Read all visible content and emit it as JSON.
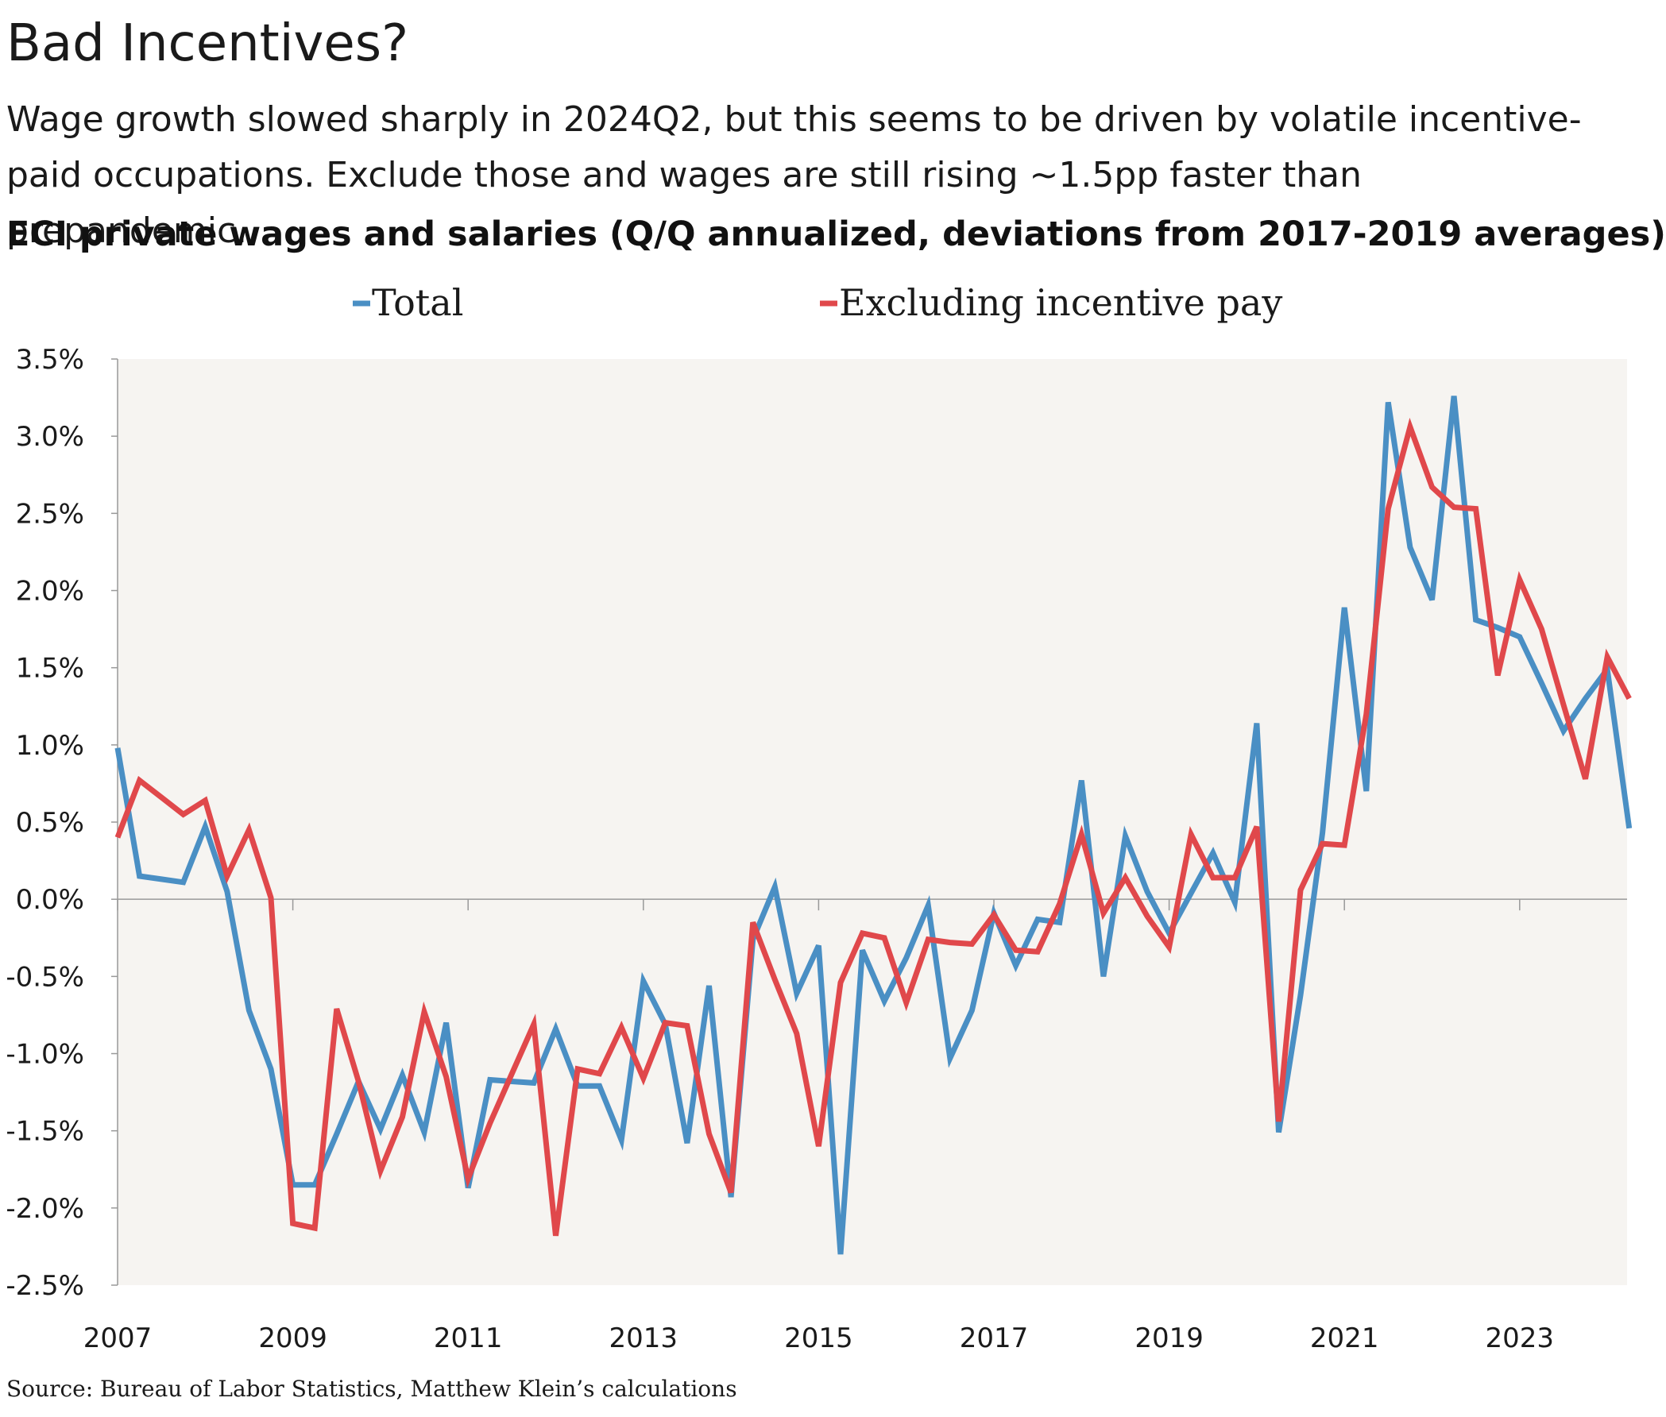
{
  "header": {
    "title": "Bad Incentives?",
    "subtitle": "Wage growth slowed sharply in 2024Q2, but this seems to be driven by volatile incentive-paid occupations. Exclude those and wages are still rising ~1.5pp faster than prepandemic.",
    "chart_heading": "ECI private wages and salaries (Q/Q annualized, deviations from 2017-2019 averages)"
  },
  "footer": {
    "source": "Source: Bureau of Labor Statistics, Matthew Klein’s calculations"
  },
  "colors": {
    "total": "#4a8fc4",
    "excluding": "#e0484b",
    "plot_background": "#f6f4f1",
    "axis": "#999999",
    "text": "#1a1a1a"
  },
  "chart_data": {
    "type": "line",
    "title": "ECI private wages and salaries (Q/Q annualized, deviations from 2017-2019 averages)",
    "xlabel": "",
    "ylabel": "",
    "x_ticks": [
      "2007",
      "2009",
      "2011",
      "2013",
      "2015",
      "2017",
      "2019",
      "2021",
      "2023"
    ],
    "y_ticks": [
      "3.5%",
      "3.0%",
      "2.5%",
      "2.0%",
      "1.5%",
      "1.0%",
      "0.5%",
      "0.0%",
      "-0.5%",
      "-1.0%",
      "-1.5%",
      "-2.0%",
      "-2.5%"
    ],
    "ylim": [
      -2.5,
      3.5
    ],
    "xlim": [
      2007.0,
      2024.25
    ],
    "legend_position": "top",
    "series": [
      {
        "name": "Total",
        "color": "#4a8fc4",
        "points": [
          [
            2007.0,
            0.98
          ],
          [
            2007.25,
            0.15
          ],
          [
            2007.5,
            0.13
          ],
          [
            2007.75,
            0.11
          ],
          [
            2008.0,
            0.47
          ],
          [
            2008.25,
            0.05
          ],
          [
            2008.5,
            -0.72
          ],
          [
            2008.75,
            -1.1
          ],
          [
            2009.0,
            -1.85
          ],
          [
            2009.25,
            -1.85
          ],
          [
            2009.5,
            -1.52
          ],
          [
            2009.75,
            -1.18
          ],
          [
            2010.0,
            -1.49
          ],
          [
            2010.25,
            -1.14
          ],
          [
            2010.5,
            -1.51
          ],
          [
            2010.75,
            -0.8
          ],
          [
            2011.0,
            -1.87
          ],
          [
            2011.25,
            -1.17
          ],
          [
            2011.5,
            -1.18
          ],
          [
            2011.75,
            -1.19
          ],
          [
            2012.0,
            -0.84
          ],
          [
            2012.25,
            -1.21
          ],
          [
            2012.5,
            -1.21
          ],
          [
            2012.75,
            -1.56
          ],
          [
            2013.0,
            -0.53
          ],
          [
            2013.25,
            -0.81
          ],
          [
            2013.5,
            -1.58
          ],
          [
            2013.75,
            -0.56
          ],
          [
            2014.0,
            -1.93
          ],
          [
            2014.25,
            -0.26
          ],
          [
            2014.5,
            0.08
          ],
          [
            2014.75,
            -0.61
          ],
          [
            2015.0,
            -0.3
          ],
          [
            2015.25,
            -2.3
          ],
          [
            2015.5,
            -0.33
          ],
          [
            2015.75,
            -0.66
          ],
          [
            2016.0,
            -0.38
          ],
          [
            2016.25,
            -0.04
          ],
          [
            2016.5,
            -1.03
          ],
          [
            2016.75,
            -0.72
          ],
          [
            2017.0,
            -0.09
          ],
          [
            2017.25,
            -0.43
          ],
          [
            2017.5,
            -0.13
          ],
          [
            2017.75,
            -0.15
          ],
          [
            2018.0,
            0.77
          ],
          [
            2018.25,
            -0.5
          ],
          [
            2018.5,
            0.41
          ],
          [
            2018.75,
            0.05
          ],
          [
            2019.0,
            -0.22
          ],
          [
            2019.25,
            0.04
          ],
          [
            2019.5,
            0.3
          ],
          [
            2019.75,
            -0.02
          ],
          [
            2020.0,
            1.14
          ],
          [
            2020.25,
            -1.51
          ],
          [
            2020.5,
            -0.62
          ],
          [
            2020.75,
            0.43
          ],
          [
            2021.0,
            1.89
          ],
          [
            2021.25,
            0.7
          ],
          [
            2021.5,
            3.22
          ],
          [
            2021.75,
            2.28
          ],
          [
            2022.0,
            1.94
          ],
          [
            2022.25,
            3.26
          ],
          [
            2022.5,
            1.81
          ],
          [
            2022.75,
            1.76
          ],
          [
            2023.0,
            1.7
          ],
          [
            2023.25,
            1.4
          ],
          [
            2023.5,
            1.09
          ],
          [
            2023.75,
            1.3
          ],
          [
            2024.0,
            1.49
          ],
          [
            2024.25,
            0.46
          ]
        ]
      },
      {
        "name": "Excluding incentive pay",
        "color": "#e0484b",
        "points": [
          [
            2007.0,
            0.4
          ],
          [
            2007.25,
            0.77
          ],
          [
            2007.5,
            0.66
          ],
          [
            2007.75,
            0.55
          ],
          [
            2008.0,
            0.64
          ],
          [
            2008.25,
            0.15
          ],
          [
            2008.5,
            0.45
          ],
          [
            2008.75,
            0.01
          ],
          [
            2009.0,
            -2.1
          ],
          [
            2009.25,
            -2.13
          ],
          [
            2009.5,
            -0.71
          ],
          [
            2009.75,
            -1.18
          ],
          [
            2010.0,
            -1.76
          ],
          [
            2010.25,
            -1.41
          ],
          [
            2010.5,
            -0.73
          ],
          [
            2010.75,
            -1.15
          ],
          [
            2011.0,
            -1.81
          ],
          [
            2011.25,
            -1.45
          ],
          [
            2011.5,
            -1.13
          ],
          [
            2011.75,
            -0.81
          ],
          [
            2012.0,
            -2.18
          ],
          [
            2012.25,
            -1.1
          ],
          [
            2012.5,
            -1.13
          ],
          [
            2012.75,
            -0.83
          ],
          [
            2013.0,
            -1.16
          ],
          [
            2013.25,
            -0.8
          ],
          [
            2013.5,
            -0.82
          ],
          [
            2013.75,
            -1.52
          ],
          [
            2014.0,
            -1.9
          ],
          [
            2014.25,
            -0.15
          ],
          [
            2014.5,
            -0.52
          ],
          [
            2014.75,
            -0.87
          ],
          [
            2015.0,
            -1.6
          ],
          [
            2015.25,
            -0.54
          ],
          [
            2015.5,
            -0.22
          ],
          [
            2015.75,
            -0.25
          ],
          [
            2016.0,
            -0.67
          ],
          [
            2016.25,
            -0.26
          ],
          [
            2016.5,
            -0.28
          ],
          [
            2016.75,
            -0.29
          ],
          [
            2017.0,
            -0.1
          ],
          [
            2017.25,
            -0.33
          ],
          [
            2017.5,
            -0.34
          ],
          [
            2017.75,
            -0.03
          ],
          [
            2018.0,
            0.42
          ],
          [
            2018.25,
            -0.09
          ],
          [
            2018.5,
            0.14
          ],
          [
            2018.75,
            -0.11
          ],
          [
            2019.0,
            -0.31
          ],
          [
            2019.25,
            0.42
          ],
          [
            2019.5,
            0.14
          ],
          [
            2019.75,
            0.14
          ],
          [
            2020.0,
            0.47
          ],
          [
            2020.25,
            -1.44
          ],
          [
            2020.5,
            0.06
          ],
          [
            2020.75,
            0.36
          ],
          [
            2021.0,
            0.35
          ],
          [
            2021.25,
            1.2
          ],
          [
            2021.5,
            2.53
          ],
          [
            2021.75,
            3.06
          ],
          [
            2022.0,
            2.67
          ],
          [
            2022.25,
            2.54
          ],
          [
            2022.5,
            2.53
          ],
          [
            2022.75,
            1.45
          ],
          [
            2023.0,
            2.07
          ],
          [
            2023.25,
            1.75
          ],
          [
            2023.5,
            1.26
          ],
          [
            2023.75,
            0.78
          ],
          [
            2024.0,
            1.57
          ],
          [
            2024.25,
            1.3
          ]
        ]
      }
    ]
  }
}
